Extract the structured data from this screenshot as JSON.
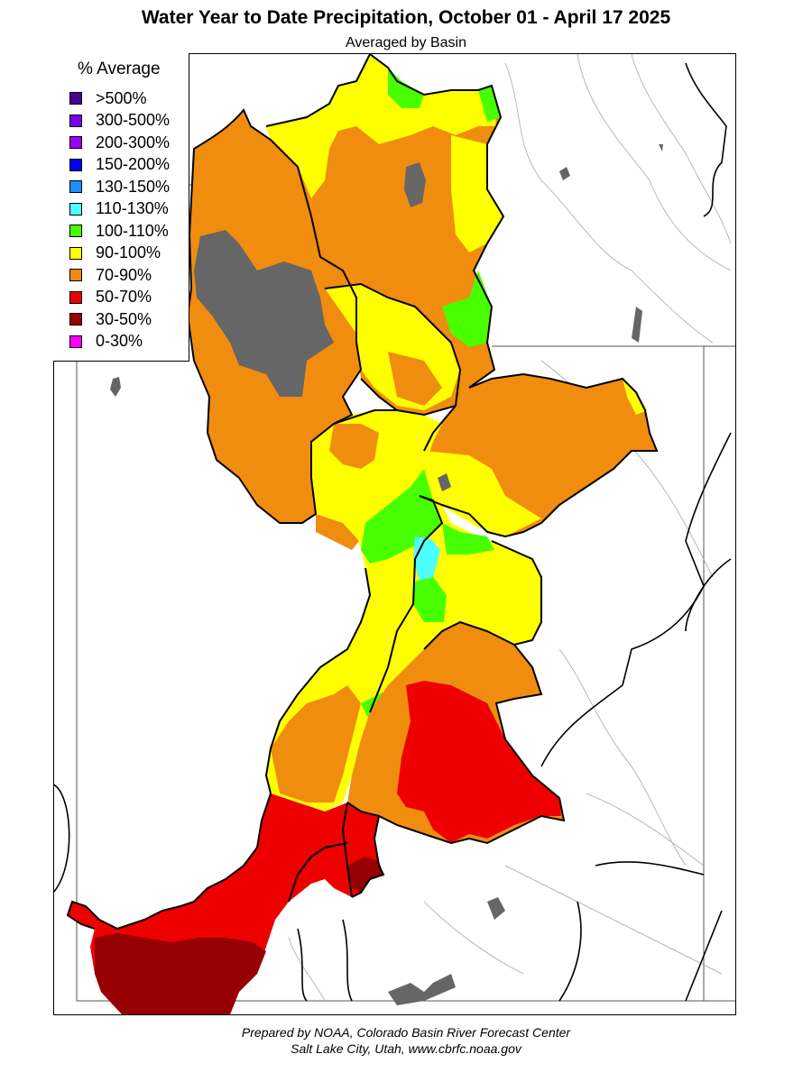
{
  "header": {
    "title": "Water Year to Date Precipitation, October 01  - April 17 2025",
    "subtitle": "Averaged by Basin"
  },
  "legend": {
    "title": "% Average",
    "items": [
      {
        "label": ">500%",
        "color": "#4b0096"
      },
      {
        "label": "300-500%",
        "color": "#7a00e8"
      },
      {
        "label": "200-300%",
        "color": "#9a00ff"
      },
      {
        "label": "150-200%",
        "color": "#0000ff"
      },
      {
        "label": "130-150%",
        "color": "#1f8fff"
      },
      {
        "label": "110-130%",
        "color": "#4dffff"
      },
      {
        "label": "100-110%",
        "color": "#47ff00"
      },
      {
        "label": "90-100%",
        "color": "#ffff00"
      },
      {
        "label": "70-90%",
        "color": "#f08c0e"
      },
      {
        "label": "50-70%",
        "color": "#ee0000"
      },
      {
        "label": "30-50%",
        "color": "#960000"
      },
      {
        "label": "0-30%",
        "color": "#ff00ff"
      }
    ]
  },
  "map": {
    "colors": {
      "no_data": "#666666",
      "boundary": "#000000",
      "river": "#9a9a9a"
    }
  },
  "footer": {
    "line1": "Prepared by NOAA, Colorado Basin River Forecast Center",
    "line2": "Salt Lake City, Utah, www.cbrfc.noaa.gov"
  }
}
